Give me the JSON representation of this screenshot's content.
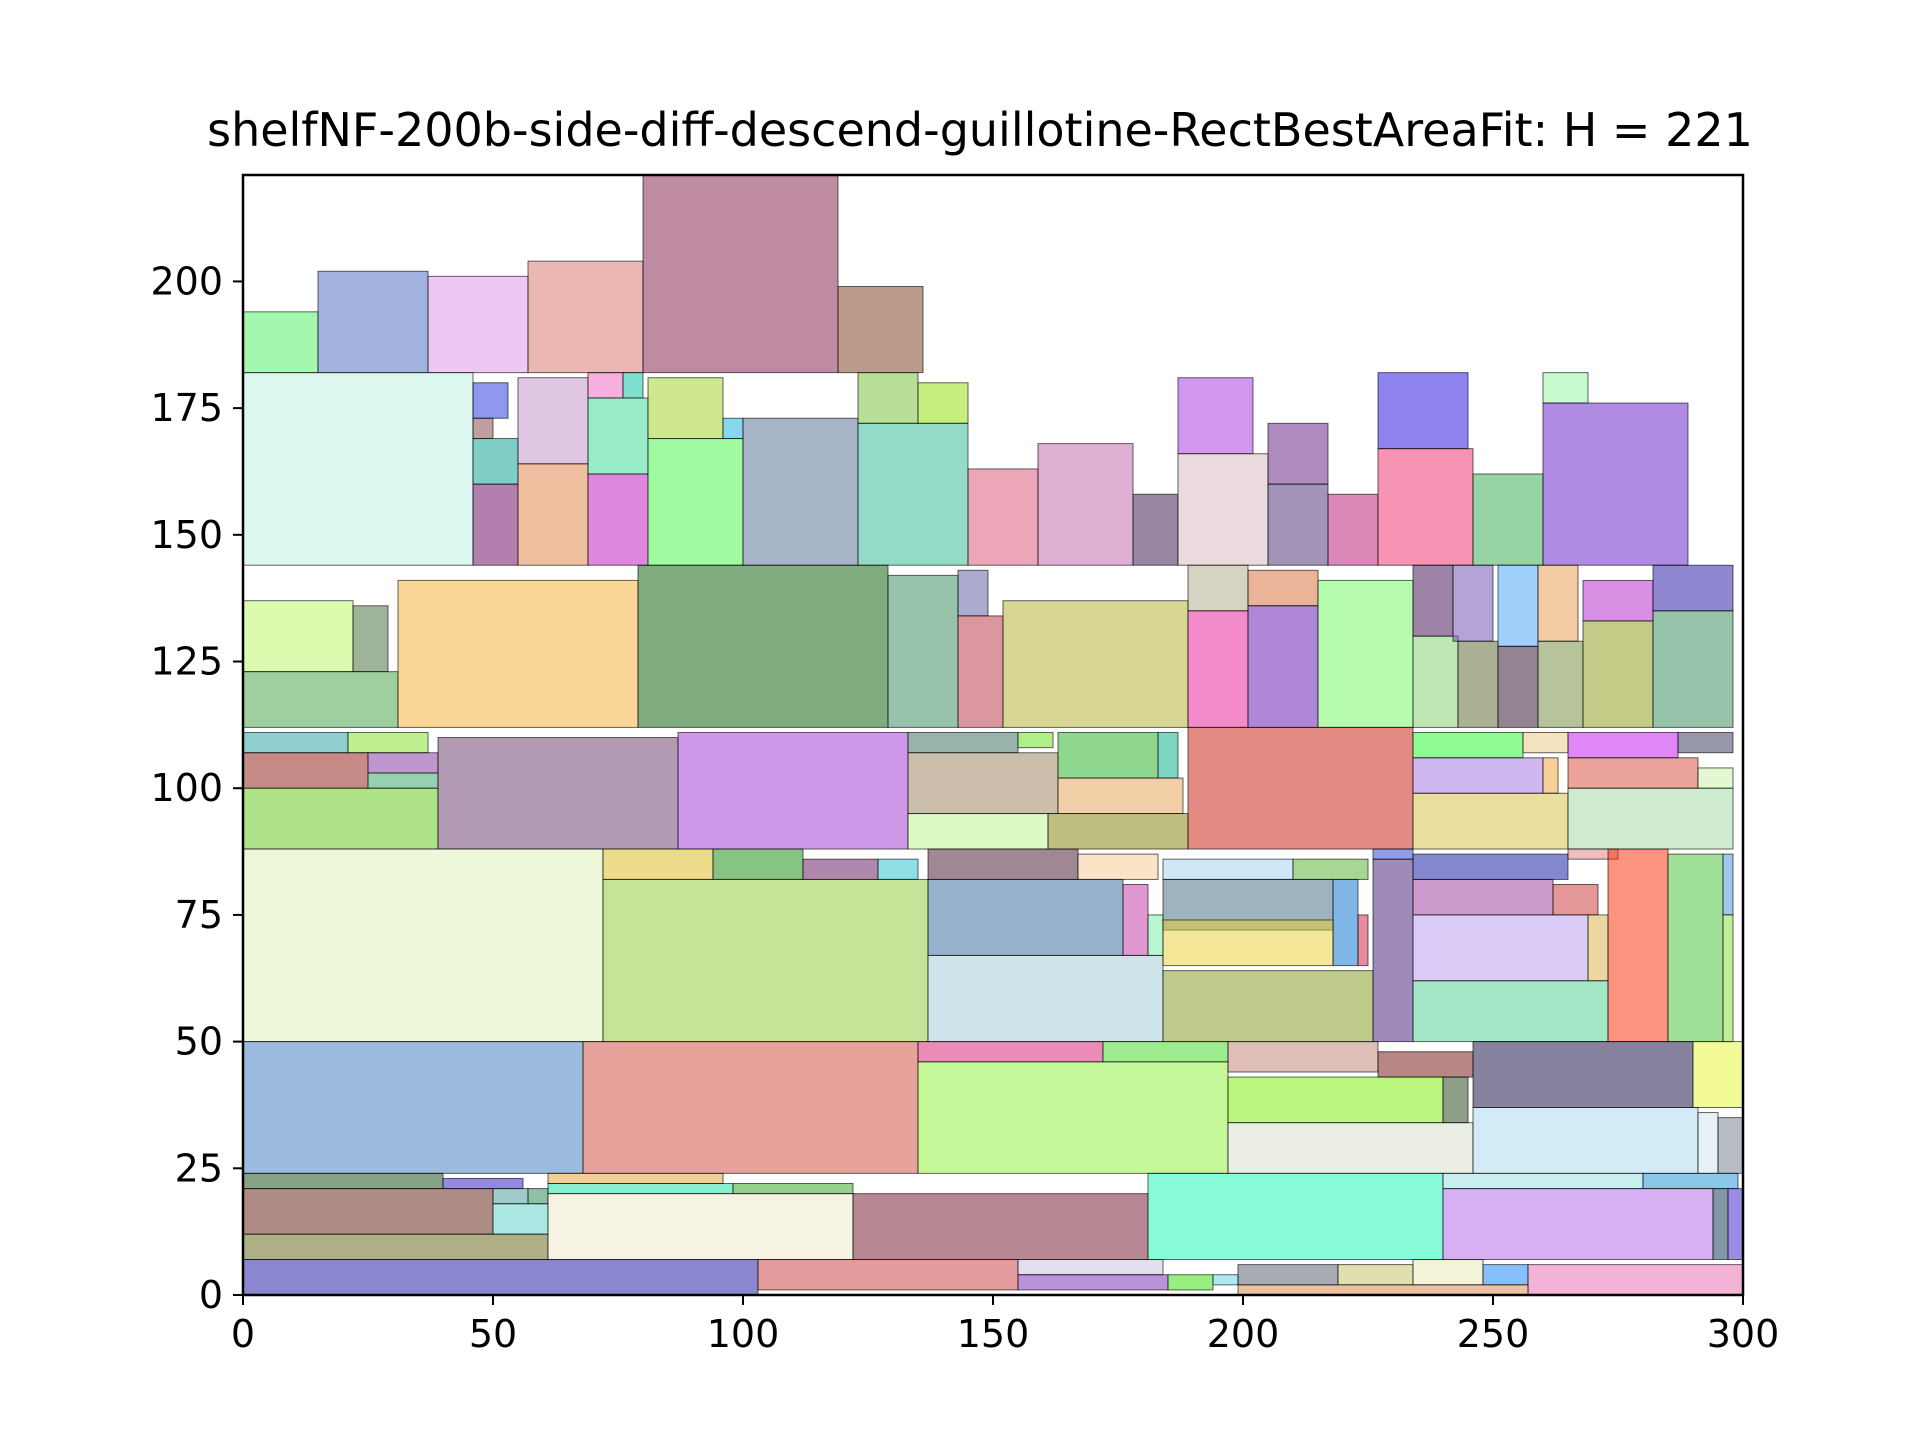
{
  "chart_data": {
    "type": "packing",
    "title": "shelfNF-200b-side-diff-descend-guillotine-RectBestAreaFit: H = 221",
    "xlabel": "",
    "ylabel": "",
    "xlim": [
      0,
      300
    ],
    "ylim": [
      0,
      221
    ],
    "xticks": [
      0,
      50,
      100,
      150,
      200,
      250,
      300
    ],
    "yticks": [
      0,
      25,
      50,
      75,
      100,
      125,
      150,
      175,
      200
    ],
    "grid": false,
    "rects": [
      {
        "x": 0,
        "y": 182,
        "w": 15,
        "h": 12,
        "color": "#48f060"
      },
      {
        "x": 15,
        "y": 182,
        "w": 22,
        "h": 20,
        "color": "#4868c0"
      },
      {
        "x": 37,
        "y": 182,
        "w": 20,
        "h": 19,
        "color": "#e090e8"
      },
      {
        "x": 57,
        "y": 182,
        "w": 23,
        "h": 22,
        "color": "#d87068"
      },
      {
        "x": 80,
        "y": 182,
        "w": 39,
        "h": 39,
        "color": "#801848"
      },
      {
        "x": 119,
        "y": 182,
        "w": 17,
        "h": 17,
        "color": "#783818"
      },
      {
        "x": 0,
        "y": 144,
        "w": 46,
        "h": 38,
        "color": "#b8f0e0"
      },
      {
        "x": 46,
        "y": 173,
        "w": 7,
        "h": 7,
        "color": "#2030e0"
      },
      {
        "x": 46,
        "y": 169,
        "w": 4,
        "h": 4,
        "color": "#804040"
      },
      {
        "x": 46,
        "y": 160,
        "w": 9,
        "h": 9,
        "color": "#00a090"
      },
      {
        "x": 46,
        "y": 144,
        "w": 9,
        "h": 16,
        "color": "#680060"
      },
      {
        "x": 55,
        "y": 164,
        "w": 14,
        "h": 17,
        "color": "#c090c8"
      },
      {
        "x": 55,
        "y": 144,
        "w": 14,
        "h": 20,
        "color": "#e08040"
      },
      {
        "x": 69,
        "y": 177,
        "w": 7,
        "h": 5,
        "color": "#f060c0"
      },
      {
        "x": 76,
        "y": 177,
        "w": 4,
        "h": 5,
        "color": "#00c0a0"
      },
      {
        "x": 69,
        "y": 162,
        "w": 12,
        "h": 15,
        "color": "#30d890"
      },
      {
        "x": 69,
        "y": 144,
        "w": 12,
        "h": 18,
        "color": "#c010c0"
      },
      {
        "x": 81,
        "y": 169,
        "w": 15,
        "h": 12,
        "color": "#a0d020"
      },
      {
        "x": 81,
        "y": 144,
        "w": 19,
        "h": 25,
        "color": "#40f840"
      },
      {
        "x": 96,
        "y": 169,
        "w": 4,
        "h": 4,
        "color": "#10b0e0"
      },
      {
        "x": 100,
        "y": 144,
        "w": 23,
        "h": 29,
        "color": "#506890"
      },
      {
        "x": 123,
        "y": 172,
        "w": 12,
        "h": 10,
        "color": "#70c030"
      },
      {
        "x": 135,
        "y": 172,
        "w": 10,
        "h": 8,
        "color": "#90e000"
      },
      {
        "x": 123,
        "y": 144,
        "w": 22,
        "h": 28,
        "color": "#28b890"
      },
      {
        "x": 145,
        "y": 144,
        "w": 14,
        "h": 19,
        "color": "#d85070"
      },
      {
        "x": 159,
        "y": 144,
        "w": 19,
        "h": 24,
        "color": "#c060a8"
      },
      {
        "x": 178,
        "y": 144,
        "w": 9,
        "h": 14,
        "color": "#301048"
      },
      {
        "x": 187,
        "y": 166,
        "w": 15,
        "h": 15,
        "color": "#a830e0"
      },
      {
        "x": 187,
        "y": 144,
        "w": 18,
        "h": 22,
        "color": "#d8b8c0"
      },
      {
        "x": 205,
        "y": 160,
        "w": 12,
        "h": 12,
        "color": "#601880"
      },
      {
        "x": 205,
        "y": 144,
        "w": 12,
        "h": 16,
        "color": "#482870"
      },
      {
        "x": 217,
        "y": 144,
        "w": 10,
        "h": 14,
        "color": "#b81070"
      },
      {
        "x": 227,
        "y": 167,
        "w": 18,
        "h": 15,
        "color": "#2008e0"
      },
      {
        "x": 227,
        "y": 144,
        "w": 19,
        "h": 23,
        "color": "#f02868"
      },
      {
        "x": 246,
        "y": 144,
        "w": 14,
        "h": 18,
        "color": "#30a848"
      },
      {
        "x": 260,
        "y": 176,
        "w": 9,
        "h": 6,
        "color": "#90f8a0"
      },
      {
        "x": 260,
        "y": 144,
        "w": 29,
        "h": 32,
        "color": "#6018c8"
      },
      {
        "x": 0,
        "y": 123,
        "w": 22,
        "h": 14,
        "color": "#b8f860"
      },
      {
        "x": 22,
        "y": 123,
        "w": 7,
        "h": 13,
        "color": "#406838"
      },
      {
        "x": 0,
        "y": 112,
        "w": 31,
        "h": 11,
        "color": "#40a040"
      },
      {
        "x": 31,
        "y": 112,
        "w": 48,
        "h": 29,
        "color": "#f8b030"
      },
      {
        "x": 79,
        "y": 112,
        "w": 50,
        "h": 32,
        "color": "#005800"
      },
      {
        "x": 129,
        "y": 112,
        "w": 14,
        "h": 30,
        "color": "#308858"
      },
      {
        "x": 143,
        "y": 134,
        "w": 6,
        "h": 9,
        "color": "#5858a0"
      },
      {
        "x": 143,
        "y": 112,
        "w": 9,
        "h": 22,
        "color": "#b83040"
      },
      {
        "x": 152,
        "y": 112,
        "w": 37,
        "h": 25,
        "color": "#b0b028"
      },
      {
        "x": 189,
        "y": 135,
        "w": 12,
        "h": 9,
        "color": "#b0a888"
      },
      {
        "x": 189,
        "y": 112,
        "w": 12,
        "h": 23,
        "color": "#e81898"
      },
      {
        "x": 201,
        "y": 136,
        "w": 14,
        "h": 7,
        "color": "#d86830"
      },
      {
        "x": 201,
        "y": 112,
        "w": 14,
        "h": 24,
        "color": "#6010b0"
      },
      {
        "x": 215,
        "y": 112,
        "w": 19,
        "h": 29,
        "color": "#70f860"
      },
      {
        "x": 234,
        "y": 130,
        "w": 8,
        "h": 14,
        "color": "#400850"
      },
      {
        "x": 234,
        "y": 112,
        "w": 9,
        "h": 18,
        "color": "#80d068"
      },
      {
        "x": 242,
        "y": 129,
        "w": 8,
        "h": 15,
        "color": "#6848b0"
      },
      {
        "x": 243,
        "y": 112,
        "w": 8,
        "h": 17,
        "color": "#586028"
      },
      {
        "x": 251,
        "y": 128,
        "w": 8,
        "h": 16,
        "color": "#40a0f8"
      },
      {
        "x": 251,
        "y": 112,
        "w": 8,
        "h": 16,
        "color": "#280828"
      },
      {
        "x": 259,
        "y": 129,
        "w": 8,
        "h": 15,
        "color": "#e89848"
      },
      {
        "x": 259,
        "y": 112,
        "w": 9,
        "h": 17,
        "color": "#708838"
      },
      {
        "x": 268,
        "y": 133,
        "w": 14,
        "h": 8,
        "color": "#b020c8"
      },
      {
        "x": 268,
        "y": 112,
        "w": 14,
        "h": 21,
        "color": "#889810"
      },
      {
        "x": 282,
        "y": 135,
        "w": 16,
        "h": 9,
        "color": "#2010a0"
      },
      {
        "x": 282,
        "y": 112,
        "w": 16,
        "h": 23,
        "color": "#308858"
      },
      {
        "x": 0,
        "y": 107,
        "w": 21,
        "h": 4,
        "color": "#20a0a0"
      },
      {
        "x": 21,
        "y": 107,
        "w": 16,
        "h": 4,
        "color": "#80e020"
      },
      {
        "x": 0,
        "y": 100,
        "w": 25,
        "h": 7,
        "color": "#901810"
      },
      {
        "x": 25,
        "y": 103,
        "w": 14,
        "h": 4,
        "color": "#8030a0"
      },
      {
        "x": 25,
        "y": 100,
        "w": 14,
        "h": 3,
        "color": "#30a068"
      },
      {
        "x": 0,
        "y": 88,
        "w": 39,
        "h": 12,
        "color": "#60c810"
      },
      {
        "x": 39,
        "y": 88,
        "w": 48,
        "h": 22,
        "color": "#683868"
      },
      {
        "x": 87,
        "y": 88,
        "w": 46,
        "h": 23,
        "color": "#a030d0"
      },
      {
        "x": 133,
        "y": 107,
        "w": 22,
        "h": 4,
        "color": "#306858"
      },
      {
        "x": 155,
        "y": 108,
        "w": 7,
        "h": 3,
        "color": "#60e010"
      },
      {
        "x": 133,
        "y": 95,
        "w": 30,
        "h": 12,
        "color": "#988058"
      },
      {
        "x": 163,
        "y": 102,
        "w": 20,
        "h": 9,
        "color": "#20b020"
      },
      {
        "x": 183,
        "y": 102,
        "w": 4,
        "h": 9,
        "color": "#00b088"
      },
      {
        "x": 163,
        "y": 95,
        "w": 25,
        "h": 7,
        "color": "#e8a050"
      },
      {
        "x": 133,
        "y": 88,
        "w": 28,
        "h": 7,
        "color": "#b8f888"
      },
      {
        "x": 161,
        "y": 88,
        "w": 28,
        "h": 7,
        "color": "#808000"
      },
      {
        "x": 189,
        "y": 88,
        "w": 45,
        "h": 24,
        "color": "#c81808"
      },
      {
        "x": 234,
        "y": 106,
        "w": 22,
        "h": 5,
        "color": "#20f828"
      },
      {
        "x": 256,
        "y": 107,
        "w": 9,
        "h": 4,
        "color": "#e8c880"
      },
      {
        "x": 234,
        "y": 99,
        "w": 26,
        "h": 7,
        "color": "#a070e0"
      },
      {
        "x": 260,
        "y": 99,
        "w": 3,
        "h": 7,
        "color": "#f0a030"
      },
      {
        "x": 234,
        "y": 88,
        "w": 31,
        "h": 11,
        "color": "#d8c040"
      },
      {
        "x": 265,
        "y": 106,
        "w": 22,
        "h": 5,
        "color": "#c010f0"
      },
      {
        "x": 287,
        "y": 107,
        "w": 11,
        "h": 4,
        "color": "#303058"
      },
      {
        "x": 265,
        "y": 100,
        "w": 26,
        "h": 6,
        "color": "#d84838"
      },
      {
        "x": 291,
        "y": 100,
        "w": 7,
        "h": 4,
        "color": "#c8f0a8"
      },
      {
        "x": 265,
        "y": 88,
        "w": 33,
        "h": 12,
        "color": "#a0d8a0"
      },
      {
        "x": 0,
        "y": 50,
        "w": 72,
        "h": 38,
        "color": "#e0f0b8"
      },
      {
        "x": 72,
        "y": 82,
        "w": 22,
        "h": 6,
        "color": "#d8b818"
      },
      {
        "x": 94,
        "y": 82,
        "w": 18,
        "h": 6,
        "color": "#108808"
      },
      {
        "x": 112,
        "y": 82,
        "w": 15,
        "h": 4,
        "color": "#601060"
      },
      {
        "x": 127,
        "y": 82,
        "w": 8,
        "h": 4,
        "color": "#20c0d0"
      },
      {
        "x": 72,
        "y": 50,
        "w": 65,
        "h": 32,
        "color": "#90c830"
      },
      {
        "x": 137,
        "y": 82,
        "w": 30,
        "h": 6,
        "color": "#401028"
      },
      {
        "x": 167,
        "y": 82,
        "w": 16,
        "h": 5,
        "color": "#f8c890"
      },
      {
        "x": 137,
        "y": 67,
        "w": 39,
        "h": 15,
        "color": "#306898"
      },
      {
        "x": 176,
        "y": 67,
        "w": 5,
        "h": 14,
        "color": "#c030a0"
      },
      {
        "x": 181,
        "y": 67,
        "w": 3,
        "h": 8,
        "color": "#70f0a0"
      },
      {
        "x": 137,
        "y": 50,
        "w": 47,
        "h": 17,
        "color": "#a0c8d8"
      },
      {
        "x": 184,
        "y": 82,
        "w": 26,
        "h": 4,
        "color": "#a0d0f0"
      },
      {
        "x": 210,
        "y": 82,
        "w": 15,
        "h": 4,
        "color": "#50b028"
      },
      {
        "x": 184,
        "y": 72,
        "w": 34,
        "h": 10,
        "color": "#406880"
      },
      {
        "x": 218,
        "y": 65,
        "w": 5,
        "h": 17,
        "color": "#006cd0"
      },
      {
        "x": 223,
        "y": 65,
        "w": 2,
        "h": 10,
        "color": "#d01840"
      },
      {
        "x": 184,
        "y": 65,
        "w": 34,
        "h": 9,
        "color": "#e8d030"
      },
      {
        "x": 184,
        "y": 50,
        "w": 42,
        "h": 14,
        "color": "#809818"
      },
      {
        "x": 226,
        "y": 86,
        "w": 8,
        "h": 2,
        "color": "#2040d0"
      },
      {
        "x": 226,
        "y": 50,
        "w": 8,
        "h": 36,
        "color": "#401878"
      },
      {
        "x": 234,
        "y": 82,
        "w": 31,
        "h": 5,
        "color": "#0810a0"
      },
      {
        "x": 234,
        "y": 75,
        "w": 28,
        "h": 7,
        "color": "#983898"
      },
      {
        "x": 262,
        "y": 75,
        "w": 9,
        "h": 6,
        "color": "#c83030"
      },
      {
        "x": 234,
        "y": 62,
        "w": 35,
        "h": 13,
        "color": "#b898f0"
      },
      {
        "x": 269,
        "y": 62,
        "w": 4,
        "h": 13,
        "color": "#d8b040"
      },
      {
        "x": 234,
        "y": 50,
        "w": 39,
        "h": 12,
        "color": "#48d090"
      },
      {
        "x": 265,
        "y": 86,
        "w": 10,
        "h": 2,
        "color": "#e08080"
      },
      {
        "x": 273,
        "y": 50,
        "w": 12,
        "h": 38,
        "color": "#f82800"
      },
      {
        "x": 285,
        "y": 50,
        "w": 11,
        "h": 37,
        "color": "#40c030"
      },
      {
        "x": 296,
        "y": 75,
        "w": 2,
        "h": 12,
        "color": "#4090e0"
      },
      {
        "x": 296,
        "y": 50,
        "w": 2,
        "h": 25,
        "color": "#80e030"
      },
      {
        "x": 0,
        "y": 24,
        "w": 68,
        "h": 26,
        "color": "#3878c0"
      },
      {
        "x": 68,
        "y": 24,
        "w": 67,
        "h": 26,
        "color": "#d04838"
      },
      {
        "x": 135,
        "y": 46,
        "w": 37,
        "h": 4,
        "color": "#d81870"
      },
      {
        "x": 172,
        "y": 46,
        "w": 25,
        "h": 4,
        "color": "#40d820"
      },
      {
        "x": 135,
        "y": 24,
        "w": 62,
        "h": 22,
        "color": "#88f030"
      },
      {
        "x": 197,
        "y": 44,
        "w": 30,
        "h": 6,
        "color": "#c08070"
      },
      {
        "x": 227,
        "y": 43,
        "w": 19,
        "h": 5,
        "color": "#701008"
      },
      {
        "x": 197,
        "y": 34,
        "w": 43,
        "h": 9,
        "color": "#78f000"
      },
      {
        "x": 240,
        "y": 34,
        "w": 5,
        "h": 9,
        "color": "#204010"
      },
      {
        "x": 197,
        "y": 24,
        "w": 49,
        "h": 10,
        "color": "#d8e0c8"
      },
      {
        "x": 246,
        "y": 37,
        "w": 44,
        "h": 13,
        "color": "#100840"
      },
      {
        "x": 290,
        "y": 37,
        "w": 10,
        "h": 13,
        "color": "#e8f830"
      },
      {
        "x": 246,
        "y": 24,
        "w": 45,
        "h": 13,
        "color": "#a8d8f0"
      },
      {
        "x": 291,
        "y": 24,
        "w": 4,
        "h": 12,
        "color": "#d0e0f0"
      },
      {
        "x": 295,
        "y": 24,
        "w": 5,
        "h": 11,
        "color": "#707888"
      },
      {
        "x": 0,
        "y": 21,
        "w": 40,
        "h": 3,
        "color": "#104810"
      },
      {
        "x": 40,
        "y": 21,
        "w": 16,
        "h": 2,
        "color": "#2818c8"
      },
      {
        "x": 0,
        "y": 12,
        "w": 50,
        "h": 9,
        "color": "#5a1a08"
      },
      {
        "x": 50,
        "y": 18,
        "w": 7,
        "h": 3,
        "color": "#409898"
      },
      {
        "x": 57,
        "y": 18,
        "w": 4,
        "h": 3,
        "color": "#208050"
      },
      {
        "x": 50,
        "y": 12,
        "w": 11,
        "h": 6,
        "color": "#58d0c8"
      },
      {
        "x": 0,
        "y": 7,
        "w": 61,
        "h": 5,
        "color": "#606010"
      },
      {
        "x": 61,
        "y": 22,
        "w": 35,
        "h": 2,
        "color": "#e8a030"
      },
      {
        "x": 61,
        "y": 20,
        "w": 37,
        "h": 2,
        "color": "#10e0a0"
      },
      {
        "x": 98,
        "y": 20,
        "w": 24,
        "h": 2,
        "color": "#30a020"
      },
      {
        "x": 61,
        "y": 7,
        "w": 61,
        "h": 13,
        "color": "#f0e8c8"
      },
      {
        "x": 122,
        "y": 7,
        "w": 59,
        "h": 13,
        "color": "#701028"
      },
      {
        "x": 181,
        "y": 7,
        "w": 59,
        "h": 17,
        "color": "#10f8b0"
      },
      {
        "x": 240,
        "y": 7,
        "w": 54,
        "h": 14,
        "color": "#b060e8"
      },
      {
        "x": 294,
        "y": 7,
        "w": 3,
        "h": 14,
        "color": "#083050"
      },
      {
        "x": 297,
        "y": 7,
        "w": 3,
        "h": 14,
        "color": "#3818c8"
      },
      {
        "x": 240,
        "y": 21,
        "w": 40,
        "h": 3,
        "color": "#90e0e0"
      },
      {
        "x": 280,
        "y": 21,
        "w": 19,
        "h": 3,
        "color": "#1890d8"
      },
      {
        "x": 0,
        "y": 0,
        "w": 103,
        "h": 7,
        "color": "#1810a0"
      },
      {
        "x": 103,
        "y": 1,
        "w": 52,
        "h": 6,
        "color": "#c83838"
      },
      {
        "x": 155,
        "y": 4,
        "w": 29,
        "h": 3,
        "color": "#c8c0e0"
      },
      {
        "x": 155,
        "y": 1,
        "w": 30,
        "h": 3,
        "color": "#7828b8"
      },
      {
        "x": 185,
        "y": 1,
        "w": 9,
        "h": 3,
        "color": "#30e000"
      },
      {
        "x": 194,
        "y": 2,
        "w": 5,
        "h": 2,
        "color": "#60d0e8"
      },
      {
        "x": 199,
        "y": 2,
        "w": 20,
        "h": 4,
        "color": "#505868"
      },
      {
        "x": 219,
        "y": 2,
        "w": 15,
        "h": 4,
        "color": "#c0c060"
      },
      {
        "x": 234,
        "y": 2,
        "w": 14,
        "h": 5,
        "color": "#e8e8b0"
      },
      {
        "x": 248,
        "y": 2,
        "w": 9,
        "h": 4,
        "color": "#1080f8"
      },
      {
        "x": 257,
        "y": 0,
        "w": 43,
        "h": 6,
        "color": "#e868b0"
      },
      {
        "x": 199,
        "y": 0,
        "w": 58,
        "h": 2,
        "color": "#d88848"
      }
    ]
  }
}
